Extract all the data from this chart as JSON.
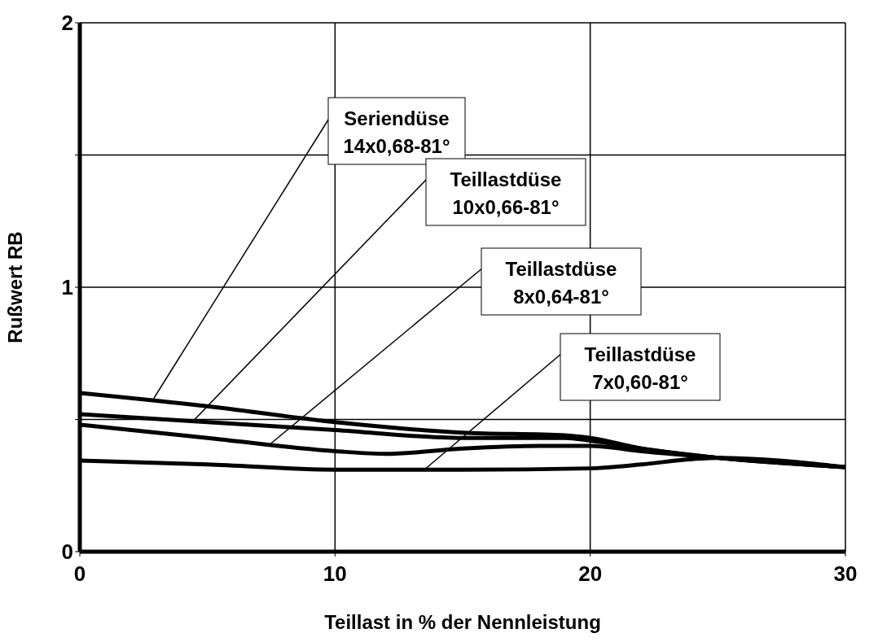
{
  "chart_data": {
    "type": "line",
    "xlabel": "Teillast in  % der Nennleistung",
    "ylabel": "Rußwert RB",
    "xlim": [
      0,
      30
    ],
    "xticks": [
      0,
      10,
      20,
      30
    ],
    "ylim": [
      0,
      2
    ],
    "yticks": [
      0,
      {
        "value": 0.5,
        "label": null
      },
      1,
      {
        "value": 1.5,
        "label": null
      },
      2
    ],
    "grid": true,
    "legend": false,
    "marker": "none",
    "line_style": "solid",
    "annotations": [
      {
        "text": "Seriendüse 14x0,68-81°",
        "x": 2.9,
        "y": 0.58
      },
      {
        "text": "Teillastdüse 10x0,66-81°",
        "x": 4.5,
        "y": 0.5
      },
      {
        "text": "Teillastdüse 8x0,64-81°",
        "x": 7.5,
        "y": 0.41
      },
      {
        "text": "Teillastdüse 7x0,60-81°",
        "x": 13.5,
        "y": 0.31
      }
    ],
    "series": [
      {
        "color": "#000000",
        "x": [
          0,
          5,
          10,
          15,
          19,
          20,
          22,
          25,
          30
        ],
        "values": [
          0.6,
          0.55,
          0.49,
          0.45,
          0.44,
          0.43,
          0.39,
          0.355,
          0.32
        ]
      },
      {
        "color": "#000000",
        "x": [
          0,
          5,
          10,
          15,
          19,
          20,
          22,
          25,
          30
        ],
        "values": [
          0.52,
          0.49,
          0.46,
          0.43,
          0.43,
          0.42,
          0.39,
          0.355,
          0.32
        ]
      },
      {
        "color": "#000000",
        "x": [
          0,
          5,
          10,
          12,
          15,
          18,
          20,
          22,
          25,
          30
        ],
        "values": [
          0.48,
          0.43,
          0.38,
          0.37,
          0.39,
          0.4,
          0.4,
          0.38,
          0.355,
          0.32
        ]
      },
      {
        "color": "#000000",
        "x": [
          0,
          5,
          10,
          15,
          20,
          22,
          24,
          25,
          30
        ],
        "values": [
          0.345,
          0.33,
          0.31,
          0.31,
          0.315,
          0.33,
          0.35,
          0.355,
          0.32
        ]
      }
    ]
  }
}
